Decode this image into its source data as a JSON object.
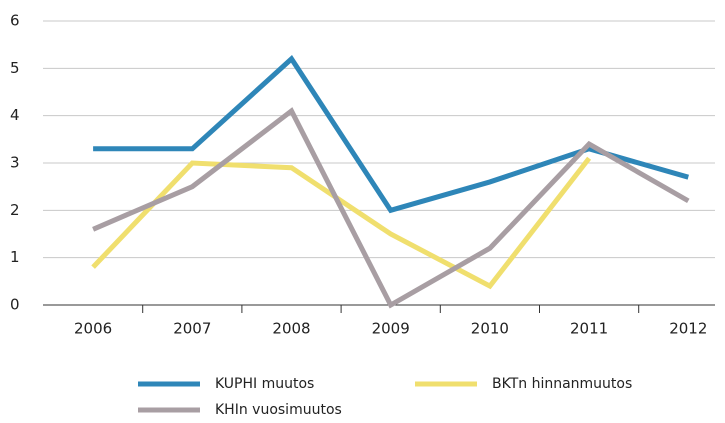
{
  "chart_data": {
    "type": "line",
    "categories": [
      "2006",
      "2007",
      "2008",
      "2009",
      "2010",
      "2011",
      "2012"
    ],
    "series": [
      {
        "name": "KUPHI muutos",
        "color": "#2e86b8",
        "values": [
          3.3,
          3.3,
          5.2,
          2.0,
          2.6,
          3.3,
          2.7
        ]
      },
      {
        "name": "BKTn hinnanmuutos",
        "color": "#f0df6e",
        "values": [
          0.8,
          3.0,
          2.9,
          1.5,
          0.4,
          3.1,
          null
        ]
      },
      {
        "name": "KHIn vuosimuutos",
        "color": "#a89ea3",
        "values": [
          1.6,
          2.5,
          4.1,
          0.0,
          1.2,
          3.4,
          2.2
        ]
      }
    ],
    "ylim": [
      0,
      6
    ],
    "yticks": [
      0,
      1,
      2,
      3,
      4,
      5,
      6
    ],
    "grid": true
  }
}
